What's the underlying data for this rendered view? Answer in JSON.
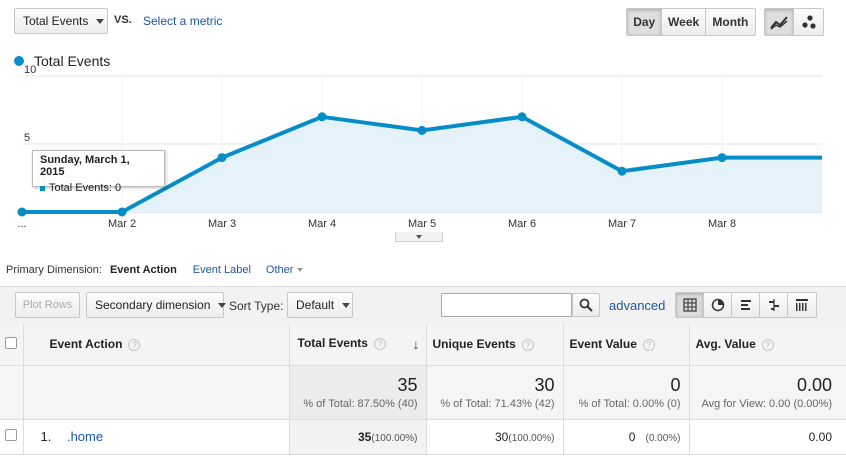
{
  "toolbar": {
    "metric_select": "Total Events",
    "vs_label": "VS.",
    "select_metric_link": "Select a metric",
    "ranges": [
      "Day",
      "Week",
      "Month"
    ],
    "active_range": "Day",
    "chart_mode_icons": [
      "line-chart-icon",
      "motion-chart-icon"
    ]
  },
  "legend": {
    "label": "Total Events",
    "color": "#058dc7"
  },
  "tooltip": {
    "title": "Sunday, March 1, 2015",
    "line": "Total Events: 0"
  },
  "chart_data": {
    "type": "area",
    "title": "Total Events",
    "x": [
      "...",
      "Mar 2",
      "Mar 3",
      "Mar 4",
      "Mar 5",
      "Mar 6",
      "Mar 7",
      "Mar 8",
      ""
    ],
    "series": [
      {
        "name": "Total Events",
        "values": [
          0,
          0,
          4,
          7,
          6,
          7,
          3,
          4,
          4
        ]
      }
    ],
    "yticks": [
      "10",
      "5"
    ],
    "ylim": [
      0,
      10
    ],
    "line_color": "#058dc7",
    "fill_color": "#e6f2fa"
  },
  "dimensions": {
    "label": "Primary Dimension:",
    "active": "Event Action",
    "others": [
      "Event Label",
      "Other"
    ]
  },
  "controls": {
    "plot_rows": "Plot Rows",
    "secondary_dimension": "Secondary dimension",
    "sort_type_label": "Sort Type:",
    "sort_type_value": "Default",
    "search_value": "",
    "advanced": "advanced"
  },
  "table": {
    "headers": [
      "Event Action",
      "Total Events",
      "Unique Events",
      "Event Value",
      "Avg. Value"
    ],
    "totals": [
      {
        "value": "35",
        "sub": "% of Total: 87.50% (40)"
      },
      {
        "value": "30",
        "sub": "% of Total: 71.43% (42)"
      },
      {
        "value": "0",
        "sub": "% of Total: 0.00% (0)"
      },
      {
        "value": "0.00",
        "sub": "Avg for View: 0.00 (0.00%)"
      }
    ],
    "rows": [
      {
        "index": "1.",
        "action": ".home",
        "total_events": "35",
        "total_events_pct": "(100.00%)",
        "unique_events": "30",
        "unique_events_pct": "(100.00%)",
        "event_value": "0",
        "event_value_pct": "(0.00%)",
        "avg_value": "0.00"
      }
    ]
  }
}
